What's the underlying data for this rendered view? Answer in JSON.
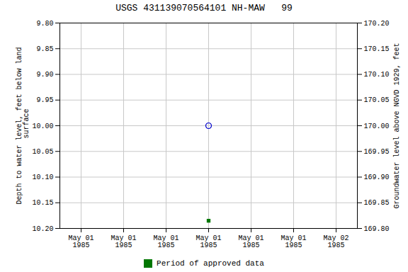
{
  "chart_data": {
    "type": "scatter",
    "title": "USGS 431139070564101 NH-MAW   99",
    "ylabel": "Depth to water level, feet below land\n surface",
    "y2label": "Groundwater level above NGVD 1929, feet",
    "categories": [
      "May 01\n1985",
      "May 01\n1985",
      "May 01\n1985",
      "May 01\n1985",
      "May 01\n1985",
      "May 01\n1985",
      "May 02\n1985"
    ],
    "series": [
      {
        "color": "#0000cc",
        "marker": "open_circle",
        "values": [
          null,
          null,
          null,
          10.0,
          null,
          null,
          null
        ]
      },
      {
        "name": "Period of approved data",
        "color": "#007700",
        "marker": "square",
        "values": [
          null,
          null,
          null,
          10.185,
          null,
          null,
          null
        ]
      }
    ],
    "ylim": [
      10.2,
      9.8
    ],
    "yticks": [
      {
        "value": 9.8,
        "label": "9.80"
      },
      9.85,
      {
        "value": 9.9,
        "label": "9.90"
      },
      9.95,
      {
        "value": 10.0,
        "label": "10.00"
      },
      10.05,
      {
        "value": 10.1,
        "label": "10.10"
      },
      10.15,
      {
        "value": 10.2,
        "label": "10.20"
      }
    ],
    "y2lim": [
      169.8,
      170.2
    ],
    "y2ticks": [
      {
        "value": 170.2,
        "label": "170.20"
      },
      170.15,
      {
        "value": 170.1,
        "label": "170.10"
      },
      170.05,
      {
        "value": 170.0,
        "label": "170.00"
      },
      169.95,
      {
        "value": 169.9,
        "label": "169.90"
      },
      169.85,
      {
        "value": 169.8,
        "label": "169.80"
      }
    ],
    "grid": true,
    "legend": "bottom"
  }
}
